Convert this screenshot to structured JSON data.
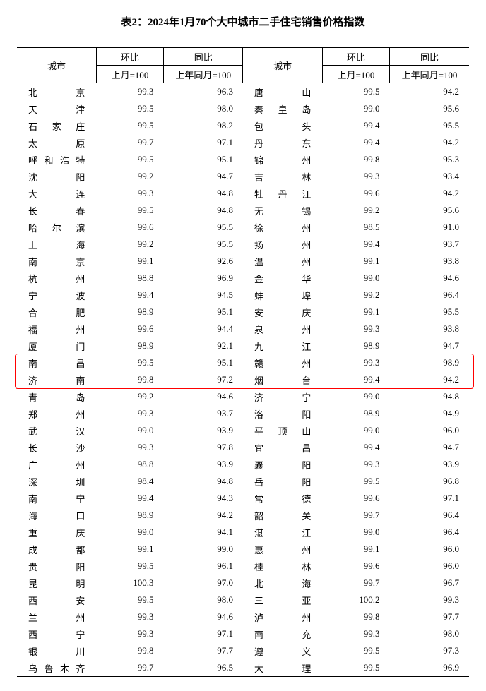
{
  "title": "表2：2024年1月70个大中城市二手住宅销售价格指数",
  "header": {
    "city": "城市",
    "mom": "环比",
    "yoy": "同比",
    "mom_sub": "上月=100",
    "yoy_sub": "上年同月=100"
  },
  "style": {
    "background": "#ffffff",
    "text_color": "#000000",
    "border_color": "#000000",
    "highlight_color": "#ff0000",
    "font_family": "SimSun",
    "title_fontsize": 15,
    "body_fontsize": 13,
    "highlight_rows": [
      16,
      17
    ]
  },
  "rows": [
    {
      "c1": "北　　京",
      "m1": "99.3",
      "y1": "96.3",
      "c2": "唐　　山",
      "m2": "99.5",
      "y2": "94.2"
    },
    {
      "c1": "天　　津",
      "m1": "99.5",
      "y1": "98.0",
      "c2": "秦 皇 岛",
      "m2": "99.0",
      "y2": "95.6"
    },
    {
      "c1": "石 家 庄",
      "m1": "99.5",
      "y1": "98.2",
      "c2": "包　　头",
      "m2": "99.4",
      "y2": "95.5"
    },
    {
      "c1": "太　　原",
      "m1": "99.7",
      "y1": "97.1",
      "c2": "丹　　东",
      "m2": "99.4",
      "y2": "94.2"
    },
    {
      "c1": "呼和浩特",
      "m1": "99.5",
      "y1": "95.1",
      "c2": "锦　　州",
      "m2": "99.8",
      "y2": "95.3"
    },
    {
      "c1": "沈　　阳",
      "m1": "99.2",
      "y1": "94.7",
      "c2": "吉　　林",
      "m2": "99.3",
      "y2": "93.4"
    },
    {
      "c1": "大　　连",
      "m1": "99.3",
      "y1": "94.8",
      "c2": "牡 丹 江",
      "m2": "99.6",
      "y2": "94.2"
    },
    {
      "c1": "长　　春",
      "m1": "99.5",
      "y1": "94.8",
      "c2": "无　　锡",
      "m2": "99.2",
      "y2": "95.6"
    },
    {
      "c1": "哈 尔 滨",
      "m1": "99.6",
      "y1": "95.5",
      "c2": "徐　　州",
      "m2": "98.5",
      "y2": "91.0"
    },
    {
      "c1": "上　　海",
      "m1": "99.2",
      "y1": "95.5",
      "c2": "扬　　州",
      "m2": "99.4",
      "y2": "93.7"
    },
    {
      "c1": "南　　京",
      "m1": "99.1",
      "y1": "92.6",
      "c2": "温　　州",
      "m2": "99.1",
      "y2": "93.8"
    },
    {
      "c1": "杭　　州",
      "m1": "98.8",
      "y1": "96.9",
      "c2": "金　　华",
      "m2": "99.0",
      "y2": "94.6"
    },
    {
      "c1": "宁　　波",
      "m1": "99.4",
      "y1": "94.5",
      "c2": "蚌　　埠",
      "m2": "99.2",
      "y2": "96.4"
    },
    {
      "c1": "合　　肥",
      "m1": "98.9",
      "y1": "95.1",
      "c2": "安　　庆",
      "m2": "99.1",
      "y2": "95.5"
    },
    {
      "c1": "福　　州",
      "m1": "99.6",
      "y1": "94.4",
      "c2": "泉　　州",
      "m2": "99.3",
      "y2": "93.8"
    },
    {
      "c1": "厦　　门",
      "m1": "98.9",
      "y1": "92.1",
      "c2": "九　　江",
      "m2": "98.9",
      "y2": "94.7"
    },
    {
      "c1": "南　　昌",
      "m1": "99.5",
      "y1": "95.1",
      "c2": "赣　　州",
      "m2": "99.3",
      "y2": "98.9"
    },
    {
      "c1": "济　　南",
      "m1": "99.8",
      "y1": "97.2",
      "c2": "烟　　台",
      "m2": "99.4",
      "y2": "94.2"
    },
    {
      "c1": "青　　岛",
      "m1": "99.2",
      "y1": "94.6",
      "c2": "济　　宁",
      "m2": "99.0",
      "y2": "94.8"
    },
    {
      "c1": "郑　　州",
      "m1": "99.3",
      "y1": "93.7",
      "c2": "洛　　阳",
      "m2": "98.9",
      "y2": "94.9"
    },
    {
      "c1": "武　　汉",
      "m1": "99.0",
      "y1": "93.9",
      "c2": "平 顶 山",
      "m2": "99.0",
      "y2": "96.0"
    },
    {
      "c1": "长　　沙",
      "m1": "99.3",
      "y1": "97.8",
      "c2": "宜　　昌",
      "m2": "99.4",
      "y2": "94.7"
    },
    {
      "c1": "广　　州",
      "m1": "98.8",
      "y1": "93.9",
      "c2": "襄　　阳",
      "m2": "99.3",
      "y2": "93.9"
    },
    {
      "c1": "深　　圳",
      "m1": "98.4",
      "y1": "94.8",
      "c2": "岳　　阳",
      "m2": "99.5",
      "y2": "96.8"
    },
    {
      "c1": "南　　宁",
      "m1": "99.4",
      "y1": "94.3",
      "c2": "常　　德",
      "m2": "99.6",
      "y2": "97.1"
    },
    {
      "c1": "海　　口",
      "m1": "98.9",
      "y1": "94.2",
      "c2": "韶　　关",
      "m2": "99.7",
      "y2": "96.4"
    },
    {
      "c1": "重　　庆",
      "m1": "99.0",
      "y1": "94.1",
      "c2": "湛　　江",
      "m2": "99.0",
      "y2": "96.4"
    },
    {
      "c1": "成　　都",
      "m1": "99.1",
      "y1": "99.0",
      "c2": "惠　　州",
      "m2": "99.1",
      "y2": "96.0"
    },
    {
      "c1": "贵　　阳",
      "m1": "99.5",
      "y1": "96.1",
      "c2": "桂　　林",
      "m2": "99.6",
      "y2": "96.0"
    },
    {
      "c1": "昆　　明",
      "m1": "100.3",
      "y1": "97.0",
      "c2": "北　　海",
      "m2": "99.7",
      "y2": "96.7"
    },
    {
      "c1": "西　　安",
      "m1": "99.5",
      "y1": "98.0",
      "c2": "三　　亚",
      "m2": "100.2",
      "y2": "99.3"
    },
    {
      "c1": "兰　　州",
      "m1": "99.3",
      "y1": "94.6",
      "c2": "泸　　州",
      "m2": "99.8",
      "y2": "97.7"
    },
    {
      "c1": "西　　宁",
      "m1": "99.3",
      "y1": "97.1",
      "c2": "南　　充",
      "m2": "99.3",
      "y2": "98.0"
    },
    {
      "c1": "银　　川",
      "m1": "99.8",
      "y1": "97.7",
      "c2": "遵　　义",
      "m2": "99.5",
      "y2": "97.3"
    },
    {
      "c1": "乌鲁木齐",
      "m1": "99.7",
      "y1": "96.5",
      "c2": "大　　理",
      "m2": "99.5",
      "y2": "96.9"
    }
  ]
}
